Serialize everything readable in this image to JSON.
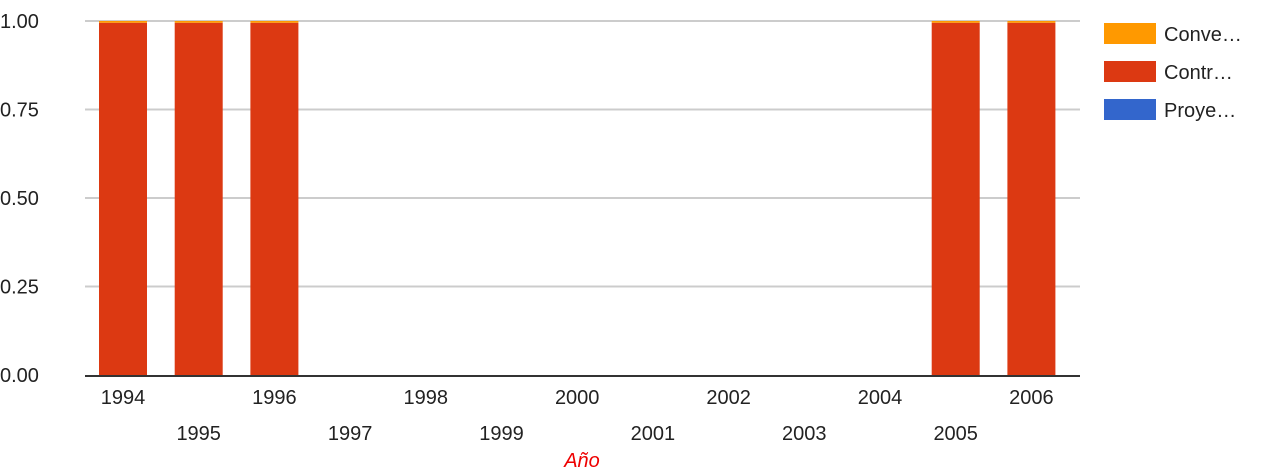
{
  "chart_data": {
    "type": "bar",
    "stacked": true,
    "categories": [
      "1994",
      "1995",
      "1996",
      "1997",
      "1998",
      "1999",
      "2000",
      "2001",
      "2002",
      "2003",
      "2004",
      "2005",
      "2006"
    ],
    "series": [
      {
        "name": "Proye…",
        "color": "#3366cc",
        "values": [
          0,
          0,
          0,
          0,
          0,
          0,
          0,
          0,
          0,
          0,
          0,
          0,
          0
        ]
      },
      {
        "name": "Contr…",
        "color": "#dc3912",
        "values": [
          0.995,
          0.995,
          0.995,
          0,
          0,
          0,
          0,
          0,
          0,
          0,
          0,
          0.995,
          0.995
        ]
      },
      {
        "name": "Conve…",
        "color": "#ff9900",
        "values": [
          0.005,
          0.005,
          0.005,
          0,
          0,
          0,
          0,
          0,
          0,
          0,
          0,
          0.005,
          0.005
        ]
      }
    ],
    "legend_order": [
      2,
      1,
      0
    ],
    "title": "",
    "xlabel": "Año",
    "xlabel_color": "#ee0000",
    "ylabel": "",
    "ylim": [
      0,
      1
    ],
    "yticks": [
      "0.00",
      "0.25",
      "0.50",
      "0.75",
      "1.00"
    ],
    "grid": true,
    "legend": "right"
  }
}
